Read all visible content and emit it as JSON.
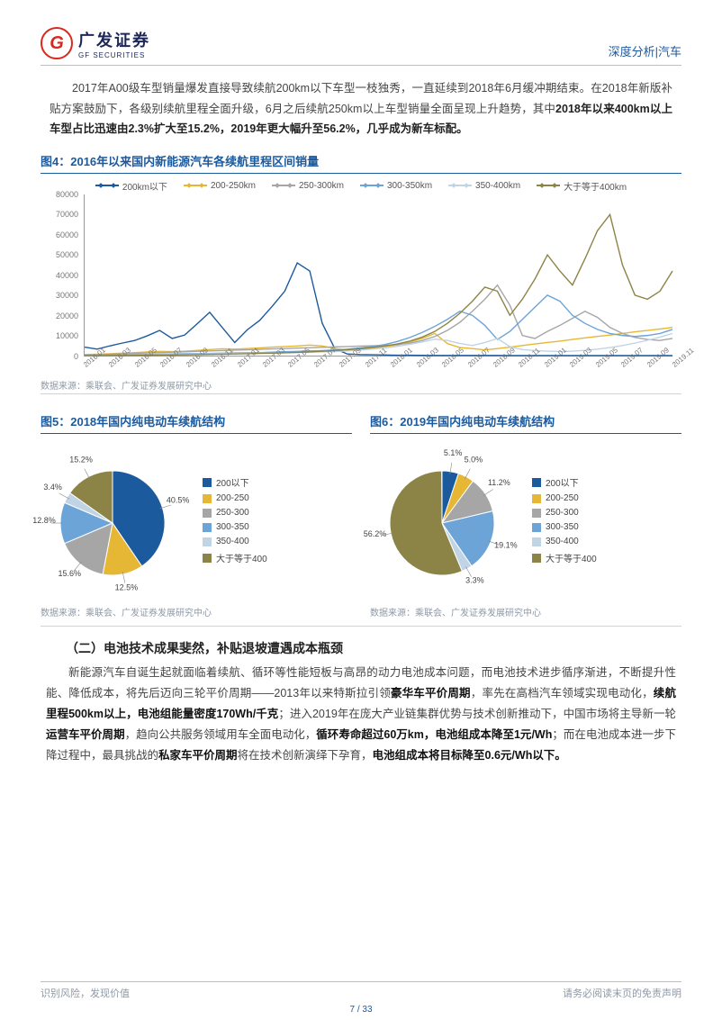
{
  "header": {
    "logo_text": "广发证券",
    "logo_sub": "GF SECURITIES",
    "right": "深度分析|汽车"
  },
  "intro": {
    "t1": "2017年A00级车型销量爆发直接导致续航200km以下车型一枝独秀，一直延续到2018年6月缓冲期结束。在2018年新版补贴方案鼓励下，各级别续航里程全面升级，6月之后续航250km以上车型销量全面呈现上升趋势，其中",
    "t2": "2018年以来400km以上车型占比迅速由2.3%扩大至15.2%，2019年更大幅升至56.2%，几乎成为新车标配。"
  },
  "fig4": {
    "title": "图4：2016年以来国内新能源汽车各续航里程区间销量",
    "source": "数据来源：乘联会、广发证券发展研究中心",
    "type": "line",
    "ylim": [
      0,
      80000
    ],
    "ytick_step": 10000,
    "x_labels": [
      "2016.01",
      "2016.03",
      "2016.05",
      "2016.07",
      "2016.09",
      "2016.11",
      "2017.01",
      "2017.03",
      "2017.05",
      "2017.07",
      "2017.09",
      "2017.11",
      "2018.01",
      "2018.03",
      "2018.05",
      "2018.07",
      "2018.09",
      "2018.11",
      "2019.01",
      "2019.03",
      "2019.05",
      "2019.07",
      "2019.09",
      "2019.11"
    ],
    "series": [
      {
        "name": "200km以下",
        "color": "#1c5a9e",
        "values": [
          4200,
          3200,
          4800,
          6200,
          7500,
          9800,
          12500,
          8500,
          10200,
          15800,
          21500,
          14000,
          6500,
          12800,
          17500,
          24500,
          32000,
          46000,
          42000,
          16000,
          3500,
          800,
          500,
          400,
          300,
          200,
          200,
          150,
          100,
          100,
          80,
          80,
          60,
          60,
          50,
          50,
          50,
          50,
          50,
          50,
          50,
          50,
          50,
          50,
          50,
          50,
          50,
          50
        ]
      },
      {
        "name": "200-250km",
        "color": "#e6b735",
        "values": [
          500,
          700,
          900,
          1200,
          1500,
          1800,
          2100,
          2000,
          2200,
          2600,
          3000,
          3400,
          3200,
          3500,
          3800,
          4200,
          4500,
          4800,
          5200,
          4800,
          3500,
          2800,
          3200,
          3800,
          4500,
          5200,
          6800,
          8500,
          11000,
          6000,
          4000,
          3500,
          2800,
          3500,
          4200,
          5000,
          5800,
          6500,
          7200,
          8000,
          8800,
          9500,
          10200,
          11000,
          11800,
          12500,
          13200,
          14000
        ]
      },
      {
        "name": "250-300km",
        "color": "#a6a6a6",
        "values": [
          300,
          500,
          700,
          900,
          1100,
          1300,
          1500,
          1700,
          1900,
          2100,
          2300,
          2500,
          2700,
          2900,
          3100,
          3300,
          3500,
          3700,
          3900,
          4100,
          4300,
          4500,
          4700,
          4900,
          5100,
          5500,
          6200,
          7500,
          9500,
          12500,
          16500,
          22000,
          28000,
          35000,
          25000,
          10000,
          8500,
          12000,
          15000,
          18500,
          22000,
          19000,
          14000,
          11000,
          9000,
          8000,
          7500,
          8500
        ]
      },
      {
        "name": "300-350km",
        "color": "#6ca4d8",
        "values": [
          100,
          200,
          300,
          400,
          500,
          600,
          700,
          800,
          900,
          1000,
          1100,
          1200,
          1300,
          1400,
          1500,
          1700,
          1900,
          2100,
          2300,
          2500,
          2800,
          3200,
          3800,
          4500,
          5500,
          7000,
          9000,
          11500,
          14500,
          18000,
          22000,
          20000,
          15000,
          8000,
          12000,
          18000,
          24000,
          30000,
          27000,
          20000,
          16000,
          13000,
          11000,
          10000,
          9500,
          10000,
          11000,
          13000
        ]
      },
      {
        "name": "350-400km",
        "color": "#c0d4e6",
        "values": [
          50,
          80,
          120,
          180,
          250,
          350,
          450,
          550,
          650,
          750,
          850,
          950,
          1050,
          1150,
          1250,
          1350,
          1450,
          1550,
          1650,
          1800,
          2000,
          2300,
          2700,
          3200,
          3800,
          4600,
          5600,
          6800,
          8200,
          7500,
          6000,
          5000,
          6500,
          8500,
          4500,
          3000,
          2500,
          2200,
          2000,
          2200,
          2600,
          3200,
          4000,
          5000,
          6200,
          7600,
          9200,
          11000
        ]
      },
      {
        "name": "大于等于400km",
        "color": "#8c8447",
        "values": [
          20,
          40,
          60,
          90,
          130,
          180,
          240,
          310,
          390,
          480,
          580,
          690,
          810,
          940,
          1080,
          1230,
          1400,
          1600,
          1850,
          2150,
          2500,
          2900,
          3400,
          4000,
          4800,
          5800,
          7200,
          9200,
          12000,
          16000,
          21000,
          27000,
          34000,
          32000,
          20000,
          28000,
          38000,
          50000,
          42000,
          35000,
          48000,
          62000,
          70000,
          45000,
          30000,
          28000,
          32000,
          42000
        ]
      }
    ]
  },
  "fig5": {
    "title": "图5：2018年国内纯电动车续航结构",
    "source": "数据来源：乘联会、广发证券发展研究中心",
    "legend": [
      "200以下",
      "200-250",
      "250-300",
      "300-350",
      "350-400",
      "大于等于400"
    ],
    "colors": [
      "#1c5a9e",
      "#e6b735",
      "#a6a6a6",
      "#6ca4d8",
      "#c0d4e6",
      "#8c8447"
    ],
    "slices": [
      {
        "label": "40.5%",
        "value": 40.5
      },
      {
        "label": "12.5%",
        "value": 12.5
      },
      {
        "label": "15.6%",
        "value": 15.6
      },
      {
        "label": "12.8%",
        "value": 12.8
      },
      {
        "label": "3.4%",
        "value": 3.4
      },
      {
        "label": "15.2%",
        "value": 15.2
      }
    ]
  },
  "fig6": {
    "title": "图6：2019年国内纯电动车续航结构",
    "source": "数据来源：乘联会、广发证券发展研究中心",
    "legend": [
      "200以下",
      "200-250",
      "250-300",
      "300-350",
      "350-400",
      "大于等于400"
    ],
    "colors": [
      "#1c5a9e",
      "#e6b735",
      "#a6a6a6",
      "#6ca4d8",
      "#c0d4e6",
      "#8c8447"
    ],
    "slices": [
      {
        "label": "5.1%",
        "value": 5.1
      },
      {
        "label": "5.0%",
        "value": 5.0
      },
      {
        "label": "11.2%",
        "value": 11.2
      },
      {
        "label": "19.1%",
        "value": 19.1
      },
      {
        "label": "3.3%",
        "value": 3.3
      },
      {
        "label": "56.2%",
        "value": 56.2
      }
    ]
  },
  "section": {
    "heading": "（二）电池技术成果斐然，补贴退坡遭遇成本瓶颈",
    "p1": "新能源汽车自诞生起就面临着续航、循环等性能短板与高昂的动力电池成本问题，而电池技术进步循序渐进，不断提升性能、降低成本，将先后迈向三轮平价周期——2013年以来特斯拉引领",
    "b1": "豪华车平价周期",
    "p2": "，率先在高档汽车领域实现电动化，",
    "b2": "续航里程500km以上，电池组能量密度170Wh/千克",
    "p3": "；进入2019年在庞大产业链集群优势与技术创新推动下，中国市场将主导新一轮",
    "b3": "运营车平价周期",
    "p4": "，趋向公共服务领域用车全面电动化，",
    "b4": "循环寿命超过60万km，电池组成本降至1元/Wh",
    "p5": "；而在电池成本进一步下降过程中，最具挑战的",
    "b5": "私家车平价周期",
    "p6": "将在技术创新演绎下孕育，",
    "b6": "电池组成本将目标降至0.6元/Wh以下。"
  },
  "footer": {
    "left": "识别风险，发现价值",
    "right": "请务必阅读末页的免责声明",
    "page": "7",
    "total": "33"
  }
}
